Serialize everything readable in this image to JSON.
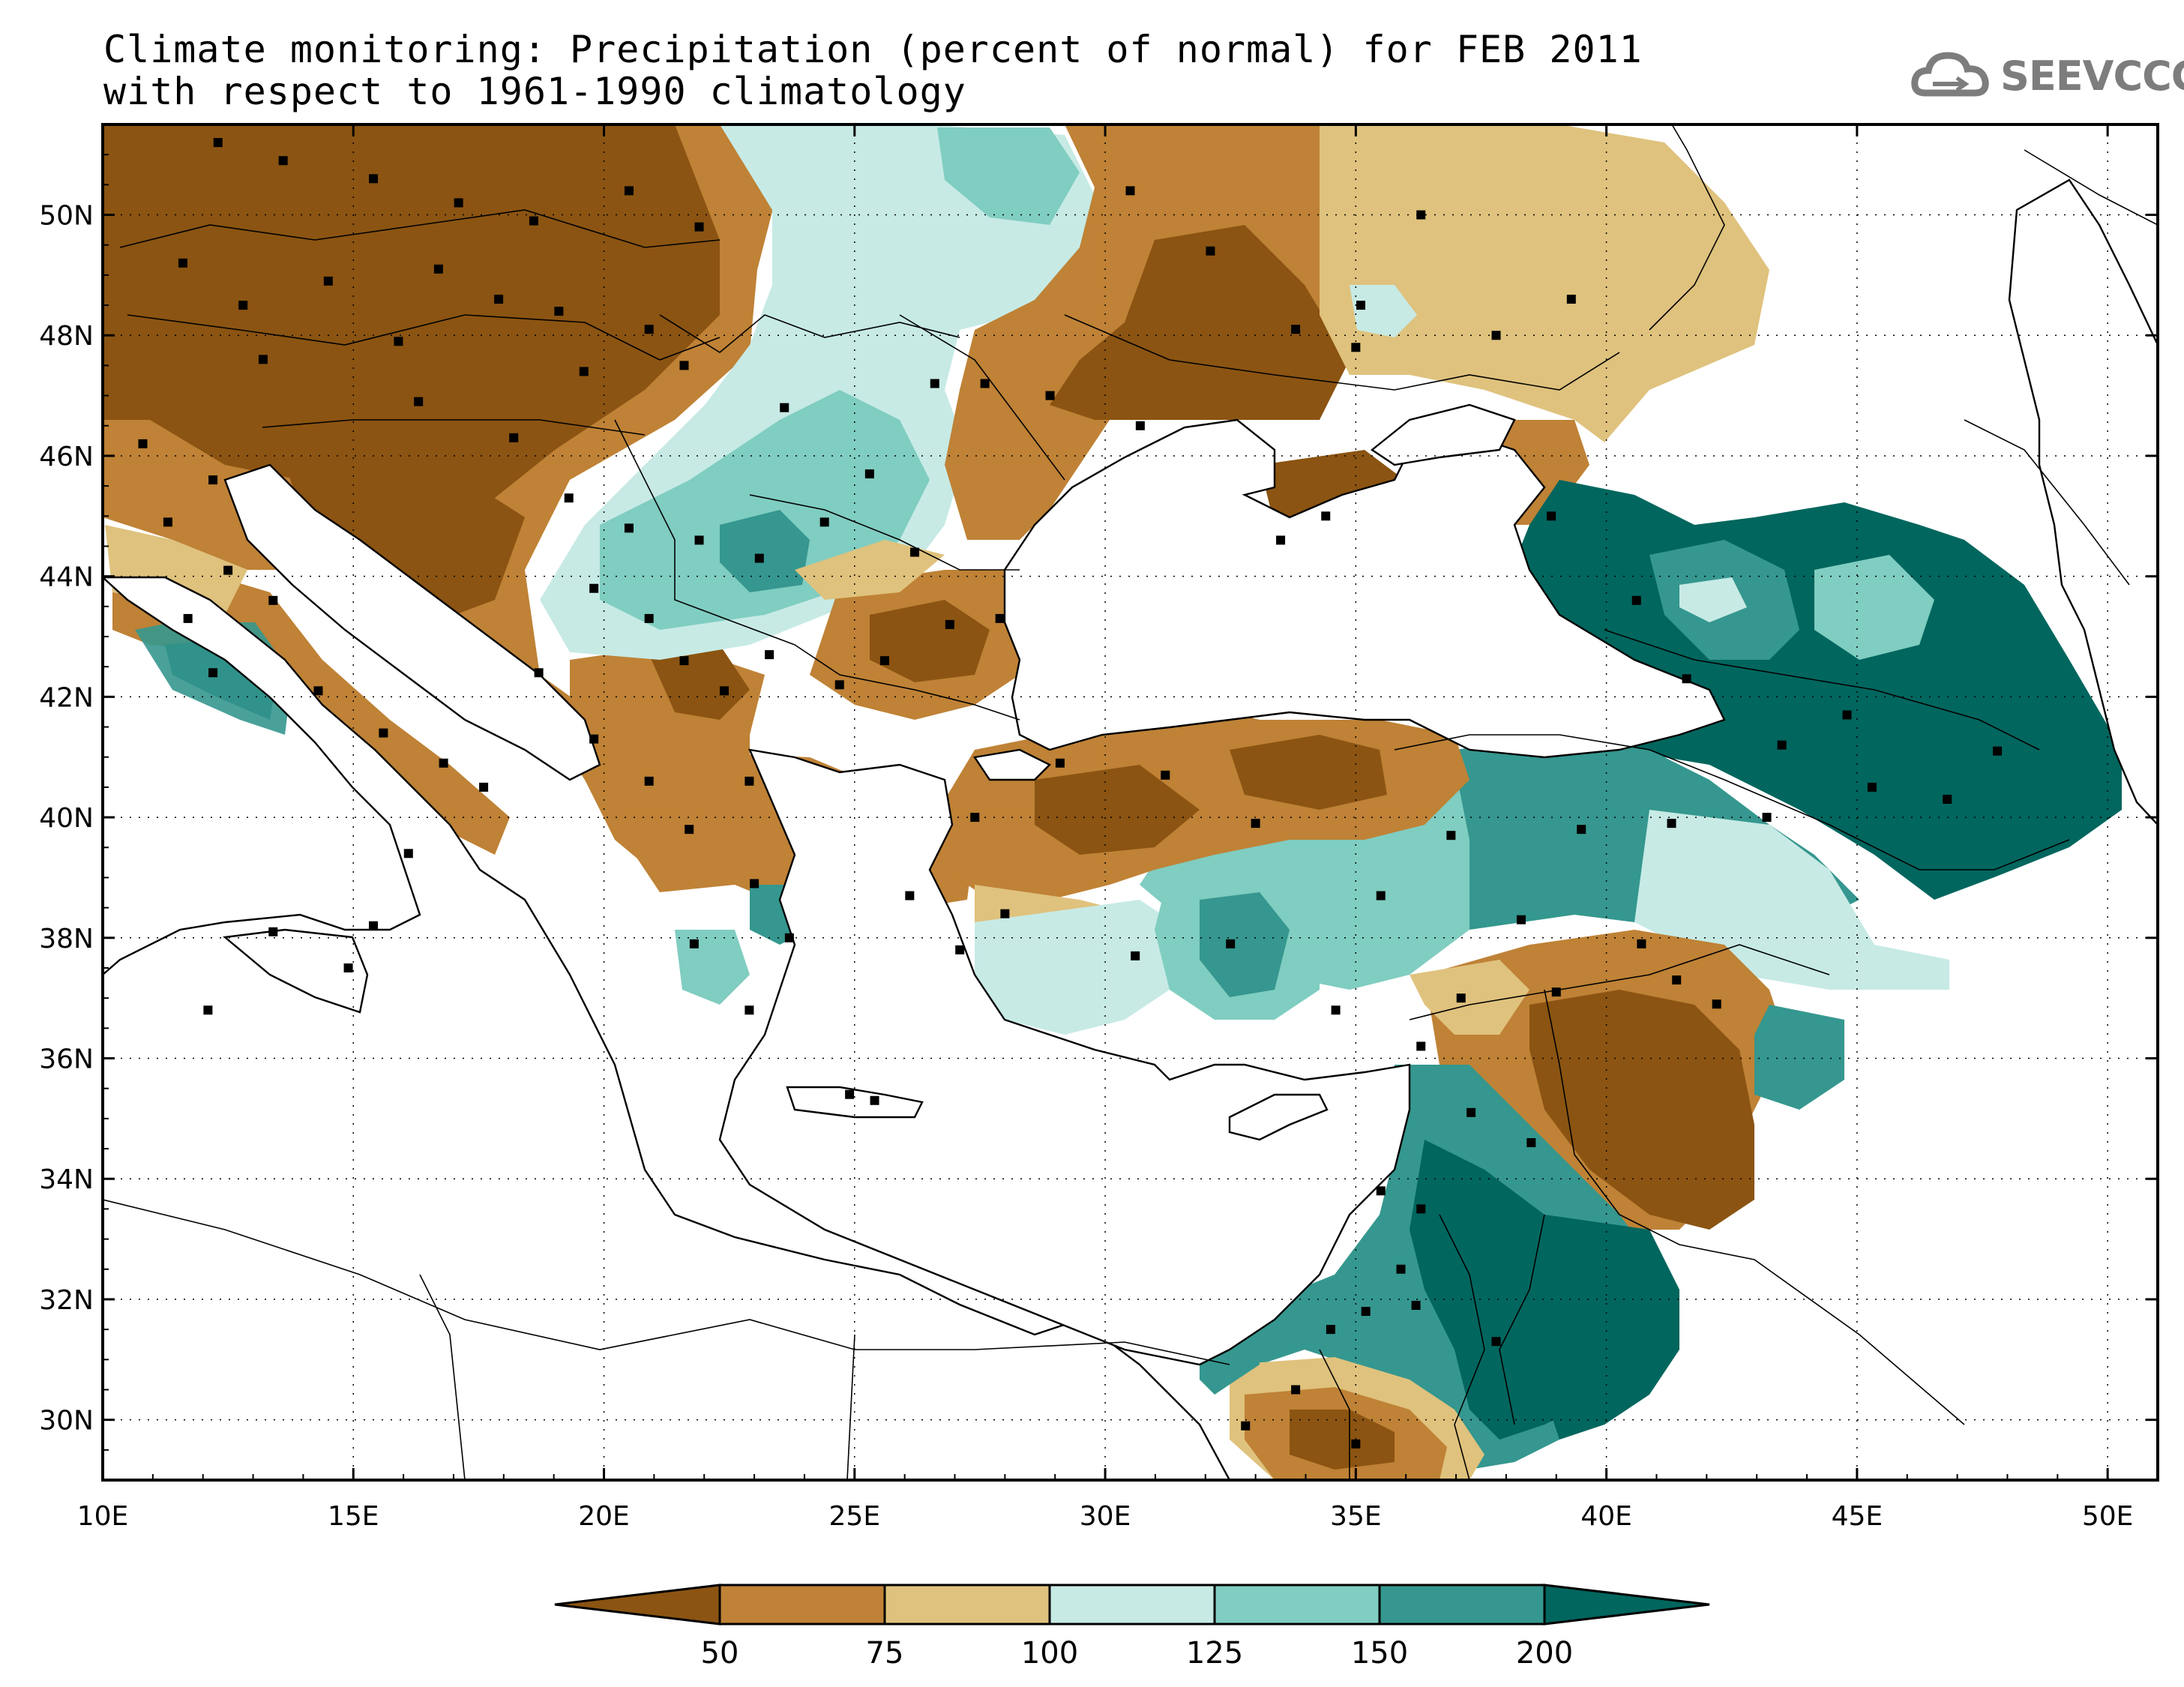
{
  "title": {
    "line1": "Climate monitoring: Precipitation (percent of normal) for FEB 2011",
    "line2": "with respect to 1961-1990 climatology"
  },
  "logo": {
    "text": "SEEVCCC",
    "icon": "cloud-icon",
    "color": "#7d7d7d"
  },
  "map": {
    "lon_range": [
      10,
      51
    ],
    "lat_range": [
      29,
      51.5
    ],
    "lon_ticks": [
      "10E",
      "15E",
      "20E",
      "25E",
      "30E",
      "35E",
      "40E",
      "45E",
      "50E"
    ],
    "lat_ticks": [
      "30N",
      "32N",
      "34N",
      "36N",
      "38N",
      "40N",
      "42N",
      "44N",
      "46N",
      "48N",
      "50N"
    ],
    "grid": true
  },
  "colorbar": {
    "labels": [
      "50",
      "75",
      "100",
      "125",
      "150",
      "200"
    ],
    "colors": [
      "#8b5412",
      "#bf8236",
      "#dfc27d",
      "#c7eae5",
      "#80cdc1",
      "#35978f",
      "#01665e"
    ]
  }
}
